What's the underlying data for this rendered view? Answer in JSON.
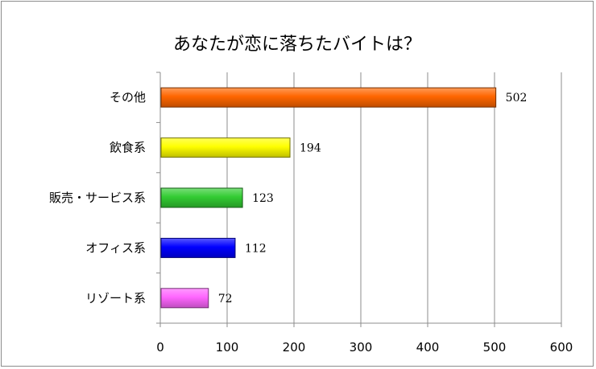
{
  "chart_data": {
    "type": "bar",
    "orientation": "horizontal",
    "title": "あなたが恋に落ちたバイトは？",
    "categories": [
      "その他",
      "飲食系",
      "販売・サービス系",
      "オフィス系",
      "リゾート系"
    ],
    "values": [
      502,
      194,
      123,
      112,
      72
    ],
    "colors": [
      "#ff6600",
      "#ffff00",
      "#33cc33",
      "#0000ff",
      "#ff66ff"
    ],
    "xlim": [
      0,
      600
    ],
    "xticks": [
      0,
      100,
      200,
      300,
      400,
      500,
      600
    ],
    "grid": true,
    "legend": "none",
    "data_labels": true
  }
}
